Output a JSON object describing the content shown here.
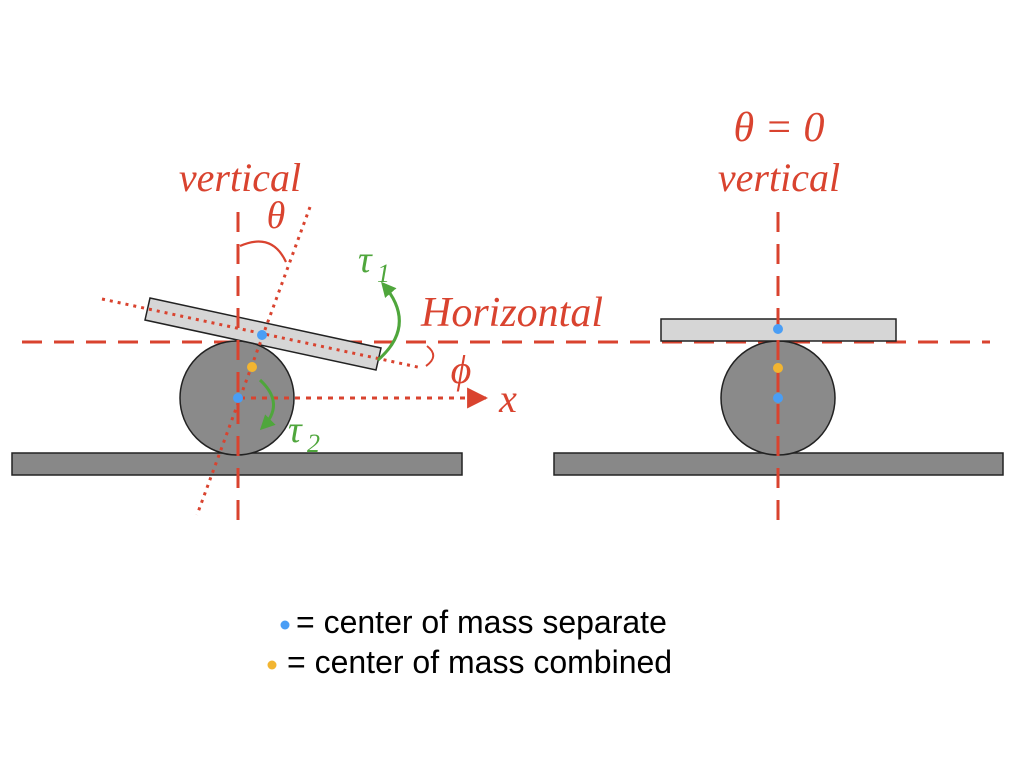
{
  "left_panel": {
    "vertical_label": "vertical",
    "theta_label": "θ",
    "horizontal_label": "Horizontal",
    "phi_label": "ϕ",
    "x_label": "x",
    "tau1_label": "τ",
    "tau1_sub": "1",
    "tau2_label": "τ",
    "tau2_sub": "2"
  },
  "right_panel": {
    "theta_eq_label": "θ = 0",
    "vertical_label": "vertical"
  },
  "legend": {
    "separate": "= center of mass separate",
    "combined": "= center of mass combined"
  },
  "colors": {
    "axis_red": "#d9432f",
    "torque_green": "#4fa63c",
    "com_separate": "#4a9ef5",
    "com_combined": "#f2b531",
    "ground": "#888888",
    "ball": "#8a8a8a",
    "plank": "#d6d6d6"
  }
}
